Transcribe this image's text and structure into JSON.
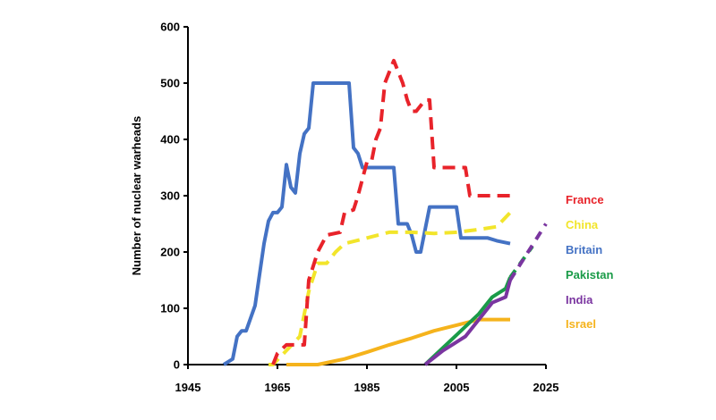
{
  "chart_data": {
    "type": "line",
    "title": "",
    "xlabel": "",
    "ylabel": "Number of nuclear warheads",
    "xlim": [
      1945,
      2025
    ],
    "ylim": [
      0,
      600
    ],
    "x_ticks": [
      1945,
      1965,
      1985,
      2005,
      2025
    ],
    "y_ticks": [
      0,
      100,
      200,
      300,
      400,
      500,
      600
    ],
    "grid": false,
    "legend_position": "right",
    "series": [
      {
        "name": "France",
        "color": "#e8232a",
        "dashed": true,
        "points": [
          [
            1964,
            0
          ],
          [
            1965,
            20
          ],
          [
            1967,
            35
          ],
          [
            1971,
            35
          ],
          [
            1972,
            150
          ],
          [
            1974,
            200
          ],
          [
            1976,
            230
          ],
          [
            1979,
            235
          ],
          [
            1980,
            270
          ],
          [
            1982,
            275
          ],
          [
            1983,
            300
          ],
          [
            1985,
            360
          ],
          [
            1986,
            360
          ],
          [
            1987,
            400
          ],
          [
            1988,
            420
          ],
          [
            1989,
            500
          ],
          [
            1991,
            540
          ],
          [
            1992,
            520
          ],
          [
            1993,
            500
          ],
          [
            1994,
            470
          ],
          [
            1995,
            450
          ],
          [
            1996,
            450
          ],
          [
            1998,
            470
          ],
          [
            1999,
            470
          ],
          [
            2000,
            350
          ],
          [
            2003,
            350
          ],
          [
            2004,
            350
          ],
          [
            2007,
            350
          ],
          [
            2008,
            300
          ],
          [
            2012,
            300
          ],
          [
            2017,
            300
          ]
        ]
      },
      {
        "name": "China",
        "color": "#f2e52b",
        "dashed": true,
        "points": [
          [
            1963,
            0
          ],
          [
            1964,
            0
          ],
          [
            1967,
            25
          ],
          [
            1970,
            50
          ],
          [
            1972,
            130
          ],
          [
            1974,
            180
          ],
          [
            1976,
            180
          ],
          [
            1978,
            200
          ],
          [
            1980,
            215
          ],
          [
            1985,
            225
          ],
          [
            1990,
            235
          ],
          [
            1995,
            235
          ],
          [
            2000,
            233
          ],
          [
            2005,
            235
          ],
          [
            2010,
            240
          ],
          [
            2014,
            245
          ],
          [
            2017,
            270
          ]
        ]
      },
      {
        "name": "Britain",
        "color": "#4472c4",
        "dashed": false,
        "points": [
          [
            1953,
            0
          ],
          [
            1955,
            10
          ],
          [
            1956,
            50
          ],
          [
            1957,
            60
          ],
          [
            1958,
            60
          ],
          [
            1960,
            105
          ],
          [
            1961,
            160
          ],
          [
            1962,
            215
          ],
          [
            1963,
            255
          ],
          [
            1964,
            270
          ],
          [
            1965,
            270
          ],
          [
            1966,
            280
          ],
          [
            1967,
            355
          ],
          [
            1968,
            315
          ],
          [
            1969,
            305
          ],
          [
            1970,
            375
          ],
          [
            1971,
            410
          ],
          [
            1972,
            420
          ],
          [
            1973,
            500
          ],
          [
            1976,
            500
          ],
          [
            1978,
            500
          ],
          [
            1981,
            500
          ],
          [
            1982,
            385
          ],
          [
            1983,
            375
          ],
          [
            1984,
            350
          ],
          [
            1990,
            350
          ],
          [
            1991,
            350
          ],
          [
            1992,
            250
          ],
          [
            1993,
            250
          ],
          [
            1994,
            250
          ],
          [
            1995,
            230
          ],
          [
            1996,
            200
          ],
          [
            1997,
            200
          ],
          [
            1998,
            240
          ],
          [
            1999,
            280
          ],
          [
            2005,
            280
          ],
          [
            2006,
            225
          ],
          [
            2012,
            225
          ],
          [
            2014,
            220
          ],
          [
            2017,
            215
          ]
        ]
      },
      {
        "name": "Pakistan",
        "color": "#1a9b48",
        "dashed": false,
        "points": [
          [
            1998,
            0
          ],
          [
            2002,
            30
          ],
          [
            2006,
            60
          ],
          [
            2010,
            90
          ],
          [
            2013,
            120
          ],
          [
            2016,
            135
          ],
          [
            2017,
            155
          ]
        ],
        "extension": [
          [
            2017,
            155
          ],
          [
            2022,
            210
          ]
        ]
      },
      {
        "name": "India",
        "color": "#7a35a0",
        "dashed": false,
        "points": [
          [
            1998,
            0
          ],
          [
            2002,
            25
          ],
          [
            2007,
            50
          ],
          [
            2010,
            80
          ],
          [
            2013,
            110
          ],
          [
            2016,
            120
          ],
          [
            2017,
            150
          ]
        ],
        "extension": [
          [
            2017,
            150
          ],
          [
            2025,
            250
          ]
        ]
      },
      {
        "name": "Israel",
        "color": "#f5b31c",
        "dashed": false,
        "points": [
          [
            1967,
            0
          ],
          [
            1970,
            0
          ],
          [
            1974,
            0
          ],
          [
            1980,
            10
          ],
          [
            1985,
            22
          ],
          [
            1990,
            35
          ],
          [
            1995,
            47
          ],
          [
            2000,
            60
          ],
          [
            2005,
            70
          ],
          [
            2010,
            80
          ],
          [
            2015,
            80
          ],
          [
            2017,
            80
          ]
        ]
      }
    ],
    "legend": [
      {
        "label": "France",
        "color": "#e8232a"
      },
      {
        "label": "China",
        "color": "#f2e52b"
      },
      {
        "label": "Britain",
        "color": "#4472c4"
      },
      {
        "label": "Pakistan",
        "color": "#1a9b48"
      },
      {
        "label": "India",
        "color": "#7a35a0"
      },
      {
        "label": "Israel",
        "color": "#f5b31c"
      }
    ]
  }
}
